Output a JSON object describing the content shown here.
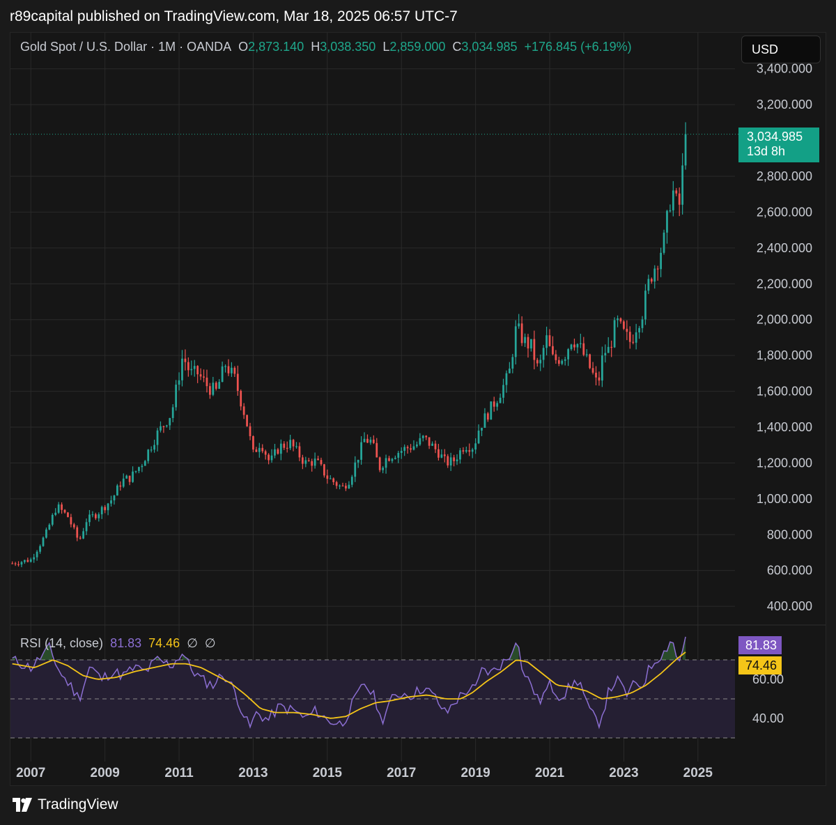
{
  "header": {
    "published": "r89capital published on TradingView.com, Mar 18, 2025 06:57 UTC-7"
  },
  "symbol": {
    "name": "Gold Spot / U.S. Dollar · 1M · OANDA",
    "open_label": "O",
    "open": "2,873.140",
    "high_label": "H",
    "high": "3,038.350",
    "low_label": "L",
    "low": "2,859.000",
    "close_label": "C",
    "close": "3,034.985",
    "change": "+176.845 (+6.19%)"
  },
  "currency_button": "USD",
  "price_tag": {
    "price": "3,034.985",
    "countdown": "13d 8h"
  },
  "rsi": {
    "label": "RSI (14, close)",
    "value": "81.83",
    "ma_value": "74.46",
    "ticks": [
      "60.00",
      "40.00"
    ],
    "levels": [
      70,
      50,
      30
    ]
  },
  "footer": {
    "brand": "TradingView"
  },
  "colors": {
    "up": "#26a69a",
    "down": "#ef5350",
    "rsi": "#8c6fd3",
    "rsi_ma": "#f5c518",
    "background": "#161616",
    "grid": "#2a2a2a"
  },
  "chart_data": {
    "type": "candlestick",
    "title": "Gold Spot / U.S. Dollar · 1M · OANDA",
    "y_ticks": [
      "3,400.000",
      "3,200.000",
      "2,800.000",
      "2,600.000",
      "2,400.000",
      "2,200.000",
      "2,000.000",
      "1,800.000",
      "1,600.000",
      "1,400.000",
      "1,200.000",
      "1,000.000",
      "800.000",
      "600.000",
      "400.000"
    ],
    "y_tick_values": [
      3400,
      3200,
      2800,
      2600,
      2400,
      2200,
      2000,
      1800,
      1600,
      1400,
      1200,
      1000,
      800,
      600,
      400
    ],
    "x_ticks": [
      "2007",
      "2009",
      "2011",
      "2013",
      "2015",
      "2017",
      "2019",
      "2021",
      "2023",
      "2025"
    ],
    "x_tick_years": [
      2007,
      2009,
      2011,
      2013,
      2015,
      2017,
      2019,
      2021,
      2023,
      2025
    ],
    "ylim": [
      350,
      3430
    ],
    "xlim": [
      2006.95,
      2026.5
    ],
    "last_close": 3034.985,
    "start_year": 2007.0,
    "close_anchors": [
      [
        2007.0,
        640
      ],
      [
        2007.5,
        660
      ],
      [
        2007.9,
        800
      ],
      [
        2008.2,
        960
      ],
      [
        2008.5,
        900
      ],
      [
        2008.8,
        760
      ],
      [
        2009.0,
        880
      ],
      [
        2009.3,
        920
      ],
      [
        2009.7,
        1000
      ],
      [
        2009.95,
        1100
      ],
      [
        2010.2,
        1120
      ],
      [
        2010.5,
        1200
      ],
      [
        2010.9,
        1360
      ],
      [
        2011.3,
        1480
      ],
      [
        2011.6,
        1800
      ],
      [
        2011.8,
        1700
      ],
      [
        2012.0,
        1700
      ],
      [
        2012.3,
        1620
      ],
      [
        2012.5,
        1600
      ],
      [
        2012.75,
        1750
      ],
      [
        2013.0,
        1670
      ],
      [
        2013.3,
        1450
      ],
      [
        2013.5,
        1250
      ],
      [
        2013.7,
        1320
      ],
      [
        2013.95,
        1200
      ],
      [
        2014.2,
        1290
      ],
      [
        2014.5,
        1310
      ],
      [
        2014.9,
        1200
      ],
      [
        2015.2,
        1210
      ],
      [
        2015.5,
        1120
      ],
      [
        2015.9,
        1060
      ],
      [
        2016.1,
        1110
      ],
      [
        2016.5,
        1330
      ],
      [
        2016.7,
        1320
      ],
      [
        2016.9,
        1170
      ],
      [
        2017.1,
        1230
      ],
      [
        2017.6,
        1280
      ],
      [
        2017.9,
        1300
      ],
      [
        2018.1,
        1340
      ],
      [
        2018.5,
        1260
      ],
      [
        2018.7,
        1200
      ],
      [
        2018.9,
        1210
      ],
      [
        2019.2,
        1300
      ],
      [
        2019.45,
        1290
      ],
      [
        2019.6,
        1400
      ],
      [
        2019.9,
        1500
      ],
      [
        2020.1,
        1570
      ],
      [
        2020.4,
        1690
      ],
      [
        2020.6,
        1960
      ],
      [
        2020.8,
        1880
      ],
      [
        2021.0,
        1850
      ],
      [
        2021.2,
        1710
      ],
      [
        2021.4,
        1900
      ],
      [
        2021.6,
        1770
      ],
      [
        2021.9,
        1800
      ],
      [
        2022.1,
        1900
      ],
      [
        2022.3,
        1850
      ],
      [
        2022.5,
        1770
      ],
      [
        2022.8,
        1630
      ],
      [
        2022.95,
        1820
      ],
      [
        2023.1,
        1830
      ],
      [
        2023.3,
        1990
      ],
      [
        2023.5,
        1920
      ],
      [
        2023.7,
        1870
      ],
      [
        2023.8,
        1950
      ],
      [
        2024.0,
        2040
      ],
      [
        2024.2,
        2230
      ],
      [
        2024.4,
        2330
      ],
      [
        2024.6,
        2450
      ],
      [
        2024.8,
        2740
      ],
      [
        2024.9,
        2650
      ],
      [
        2025.0,
        2640
      ],
      [
        2025.1,
        2860
      ],
      [
        2025.2,
        3034.985
      ]
    ],
    "rsi_anchors": [
      [
        2007.0,
        70
      ],
      [
        2007.5,
        66
      ],
      [
        2008.0,
        76
      ],
      [
        2008.3,
        63
      ],
      [
        2008.6,
        56
      ],
      [
        2008.8,
        50
      ],
      [
        2009.1,
        67
      ],
      [
        2009.4,
        60
      ],
      [
        2009.7,
        64
      ],
      [
        2010.0,
        62
      ],
      [
        2010.3,
        66
      ],
      [
        2010.6,
        64
      ],
      [
        2010.9,
        70
      ],
      [
        2011.3,
        67
      ],
      [
        2011.6,
        74
      ],
      [
        2011.8,
        66
      ],
      [
        2012.1,
        60
      ],
      [
        2012.4,
        57
      ],
      [
        2012.7,
        63
      ],
      [
        2013.0,
        54
      ],
      [
        2013.2,
        44
      ],
      [
        2013.4,
        35
      ],
      [
        2013.6,
        43
      ],
      [
        2013.9,
        39
      ],
      [
        2014.2,
        46
      ],
      [
        2014.6,
        44
      ],
      [
        2014.9,
        40
      ],
      [
        2015.2,
        44
      ],
      [
        2015.5,
        39
      ],
      [
        2015.9,
        37
      ],
      [
        2016.2,
        48
      ],
      [
        2016.5,
        58
      ],
      [
        2016.8,
        50
      ],
      [
        2016.95,
        38
      ],
      [
        2017.2,
        49
      ],
      [
        2017.5,
        53
      ],
      [
        2017.8,
        52
      ],
      [
        2018.1,
        56
      ],
      [
        2018.4,
        51
      ],
      [
        2018.7,
        42
      ],
      [
        2018.9,
        48
      ],
      [
        2019.3,
        55
      ],
      [
        2019.5,
        55
      ],
      [
        2019.7,
        66
      ],
      [
        2019.9,
        63
      ],
      [
        2020.2,
        68
      ],
      [
        2020.4,
        71
      ],
      [
        2020.6,
        82
      ],
      [
        2020.8,
        62
      ],
      [
        2021.0,
        58
      ],
      [
        2021.2,
        48
      ],
      [
        2021.5,
        57
      ],
      [
        2021.8,
        51
      ],
      [
        2022.1,
        57
      ],
      [
        2022.3,
        60
      ],
      [
        2022.5,
        47
      ],
      [
        2022.7,
        40
      ],
      [
        2022.85,
        38
      ],
      [
        2023.1,
        54
      ],
      [
        2023.3,
        60
      ],
      [
        2023.6,
        52
      ],
      [
        2023.8,
        58
      ],
      [
        2024.0,
        57
      ],
      [
        2024.2,
        66
      ],
      [
        2024.4,
        71
      ],
      [
        2024.6,
        74
      ],
      [
        2024.8,
        82
      ],
      [
        2024.9,
        72
      ],
      [
        2025.0,
        70
      ],
      [
        2025.1,
        77
      ],
      [
        2025.2,
        81.83
      ]
    ],
    "rsi_ma_anchors": [
      [
        2007.0,
        68
      ],
      [
        2007.6,
        66
      ],
      [
        2008.1,
        70
      ],
      [
        2008.5,
        67
      ],
      [
        2008.9,
        62
      ],
      [
        2009.3,
        60
      ],
      [
        2009.8,
        61
      ],
      [
        2010.3,
        64
      ],
      [
        2010.8,
        66
      ],
      [
        2011.3,
        68
      ],
      [
        2011.7,
        68
      ],
      [
        2012.1,
        66
      ],
      [
        2012.5,
        62
      ],
      [
        2012.9,
        58
      ],
      [
        2013.3,
        52
      ],
      [
        2013.7,
        45
      ],
      [
        2014.1,
        43
      ],
      [
        2014.6,
        43
      ],
      [
        2015.1,
        42
      ],
      [
        2015.6,
        40
      ],
      [
        2016.0,
        41
      ],
      [
        2016.4,
        45
      ],
      [
        2016.8,
        48
      ],
      [
        2017.2,
        49
      ],
      [
        2017.7,
        51
      ],
      [
        2018.2,
        52
      ],
      [
        2018.7,
        50
      ],
      [
        2019.1,
        50
      ],
      [
        2019.4,
        53
      ],
      [
        2019.8,
        59
      ],
      [
        2020.2,
        64
      ],
      [
        2020.6,
        70
      ],
      [
        2020.9,
        69
      ],
      [
        2021.3,
        63
      ],
      [
        2021.7,
        57
      ],
      [
        2022.1,
        56
      ],
      [
        2022.5,
        54
      ],
      [
        2022.9,
        50
      ],
      [
        2023.3,
        51
      ],
      [
        2023.7,
        53
      ],
      [
        2024.1,
        57
      ],
      [
        2024.5,
        63
      ],
      [
        2024.9,
        70
      ],
      [
        2025.2,
        74.46
      ]
    ]
  }
}
